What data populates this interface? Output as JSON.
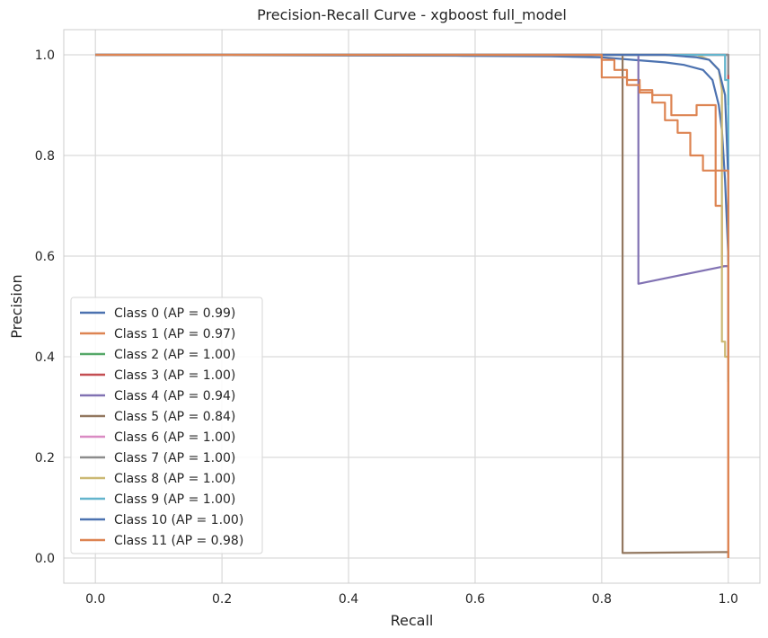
{
  "chart_data": {
    "type": "line",
    "title": "Precision-Recall Curve - xgboost full_model",
    "xlabel": "Recall",
    "ylabel": "Precision",
    "xlim": [
      -0.05,
      1.05
    ],
    "ylim": [
      -0.05,
      1.05
    ],
    "xticks": [
      0.0,
      0.2,
      0.4,
      0.6,
      0.8,
      1.0
    ],
    "yticks": [
      0.0,
      0.2,
      0.4,
      0.6,
      0.8,
      1.0
    ],
    "xtick_labels": [
      "0.0",
      "0.2",
      "0.4",
      "0.6",
      "0.8",
      "1.0"
    ],
    "ytick_labels": [
      "0.0",
      "0.2",
      "0.4",
      "0.6",
      "0.8",
      "1.0"
    ],
    "grid": true,
    "legend_position": "lower-left",
    "series": [
      {
        "name": "Class 0 (AP = 0.99)",
        "color": "#4c72b0",
        "x": [
          0,
          0.58,
          0.72,
          0.8,
          0.85,
          0.9,
          0.93,
          0.96,
          0.975,
          0.985,
          0.99,
          0.995,
          1.0,
          1.0
        ],
        "y": [
          1.0,
          0.998,
          0.997,
          0.995,
          0.99,
          0.985,
          0.98,
          0.97,
          0.95,
          0.9,
          0.85,
          0.75,
          0.6,
          0.35
        ]
      },
      {
        "name": "Class 1 (AP = 0.97)",
        "color": "#dd8452",
        "x": [
          0,
          0.8,
          0.8,
          0.82,
          0.82,
          0.84,
          0.84,
          0.86,
          0.86,
          0.88,
          0.88,
          0.91,
          0.91,
          0.95,
          0.95,
          0.98,
          0.98,
          0.99,
          0.99,
          1.0,
          1.0
        ],
        "y": [
          1.0,
          1.0,
          0.99,
          0.99,
          0.97,
          0.97,
          0.95,
          0.95,
          0.93,
          0.93,
          0.92,
          0.92,
          0.88,
          0.88,
          0.9,
          0.9,
          0.7,
          0.7,
          0.58,
          0.58,
          0.0
        ]
      },
      {
        "name": "Class 2 (AP = 1.00)",
        "color": "#55a868",
        "x": [
          0,
          1.0,
          1.0
        ],
        "y": [
          1.0,
          1.0,
          0.9
        ]
      },
      {
        "name": "Class 3 (AP = 1.00)",
        "color": "#c44e52",
        "x": [
          0,
          1.0,
          1.0
        ],
        "y": [
          1.0,
          1.0,
          0.95
        ]
      },
      {
        "name": "Class 4 (AP = 0.94)",
        "color": "#8172b3",
        "x": [
          0,
          0.858,
          0.858,
          0.995,
          1.0,
          1.0
        ],
        "y": [
          1.0,
          1.0,
          0.545,
          0.58,
          0.58,
          0.35
        ]
      },
      {
        "name": "Class 5 (AP = 0.84)",
        "color": "#937860",
        "x": [
          0,
          0.833,
          0.833,
          1.0,
          1.0
        ],
        "y": [
          1.0,
          1.0,
          0.01,
          0.012,
          0.0
        ]
      },
      {
        "name": "Class 6 (AP = 1.00)",
        "color": "#da8bc3",
        "x": [
          0,
          1.0,
          1.0
        ],
        "y": [
          1.0,
          1.0,
          0.97
        ]
      },
      {
        "name": "Class 7 (AP = 1.00)",
        "color": "#8c8c8c",
        "x": [
          0,
          1.0,
          1.0
        ],
        "y": [
          1.0,
          1.0,
          0.96
        ]
      },
      {
        "name": "Class 8 (AP = 1.00)",
        "color": "#ccb974",
        "x": [
          0,
          0.95,
          0.97,
          0.985,
          0.99,
          0.99,
          0.995,
          0.995,
          1.0,
          1.0
        ],
        "y": [
          1.0,
          1.0,
          0.99,
          0.97,
          0.93,
          0.43,
          0.43,
          0.4,
          0.4,
          0.35
        ]
      },
      {
        "name": "Class 9 (AP = 1.00)",
        "color": "#64b5cd",
        "x": [
          0,
          0.995,
          0.995,
          1.0,
          1.0
        ],
        "y": [
          1.0,
          1.0,
          0.95,
          0.95,
          0.6
        ]
      },
      {
        "name": "Class 10 (AP = 1.00)",
        "color": "#4c72b0",
        "x": [
          0,
          0.9,
          0.95,
          0.97,
          0.985,
          0.995,
          1.0,
          1.0
        ],
        "y": [
          1.0,
          1.0,
          0.995,
          0.99,
          0.97,
          0.92,
          0.75,
          0.59
        ]
      },
      {
        "name": "Class 11 (AP = 0.98)",
        "color": "#dd8452",
        "x": [
          0,
          0.8,
          0.8,
          0.84,
          0.84,
          0.86,
          0.86,
          0.88,
          0.88,
          0.9,
          0.9,
          0.92,
          0.92,
          0.94,
          0.94,
          0.96,
          0.96,
          0.975,
          0.975,
          1.0,
          1.0
        ],
        "y": [
          1.0,
          1.0,
          0.955,
          0.955,
          0.94,
          0.94,
          0.925,
          0.925,
          0.905,
          0.905,
          0.87,
          0.87,
          0.845,
          0.845,
          0.8,
          0.8,
          0.77,
          0.77,
          0.77,
          0.77,
          0.0
        ]
      }
    ]
  }
}
